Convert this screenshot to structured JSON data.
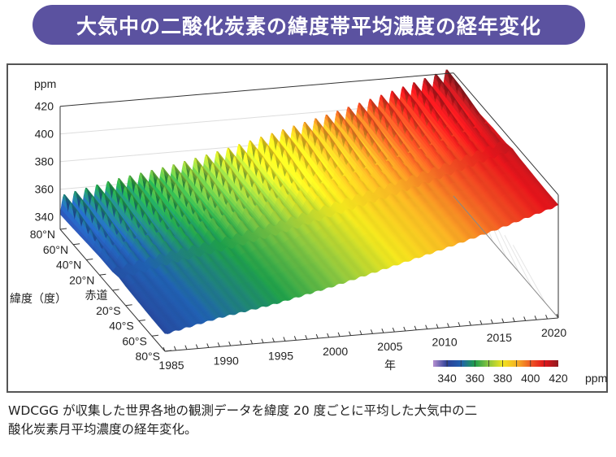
{
  "title": "大気中の二酸化炭素の緯度帯平均濃度の経年変化",
  "caption": [
    "WDCGG が収集した世界各地の観測データを緯度 20 度ごとに平均した大気中の二",
    "酸化炭素月平均濃度の経年変化。"
  ],
  "chart_data": {
    "type": "surface",
    "zlabel": "ppm",
    "ylabel": "緯度（度）",
    "xlabel": "年",
    "zlim": [
      340,
      420
    ],
    "z_ticks": [
      "340",
      "360",
      "380",
      "400",
      "420"
    ],
    "xlim": [
      1985,
      2021
    ],
    "x_ticks": [
      "1985",
      "1990",
      "1995",
      "2000",
      "2005",
      "2010",
      "2015",
      "2020"
    ],
    "latitudes": [
      "80°N",
      "60°N",
      "40°N",
      "20°N",
      "赤道",
      "20°S",
      "40°S",
      "60°S",
      "80°S"
    ],
    "years": [
      1985,
      1990,
      1995,
      2000,
      2005,
      2010,
      2015,
      2020
    ],
    "global_annual_mean_ppm": [
      345.5,
      354,
      360.5,
      369,
      379,
      389,
      400,
      412
    ],
    "latitude_offset_ppm": [
      2,
      2,
      1.5,
      1,
      0,
      -1,
      -1.5,
      -2,
      -2
    ],
    "seasonal_amplitude_ppm": [
      16,
      14,
      10,
      6,
      3,
      1.5,
      1,
      1,
      1
    ],
    "grid": true,
    "colorbar": {
      "label": "ppm",
      "ticks": [
        "340",
        "360",
        "380",
        "400",
        "420"
      ],
      "stops": [
        {
          "value": 330,
          "color": "#b58fd0"
        },
        {
          "value": 340,
          "color": "#2b3f96"
        },
        {
          "value": 350,
          "color": "#2060b0"
        },
        {
          "value": 360,
          "color": "#1f9e4a"
        },
        {
          "value": 370,
          "color": "#8dc63f"
        },
        {
          "value": 380,
          "color": "#f0e41e"
        },
        {
          "value": 390,
          "color": "#f6b324"
        },
        {
          "value": 400,
          "color": "#ee5a24"
        },
        {
          "value": 410,
          "color": "#e3151b"
        },
        {
          "value": 420,
          "color": "#8e1b20"
        }
      ]
    }
  }
}
